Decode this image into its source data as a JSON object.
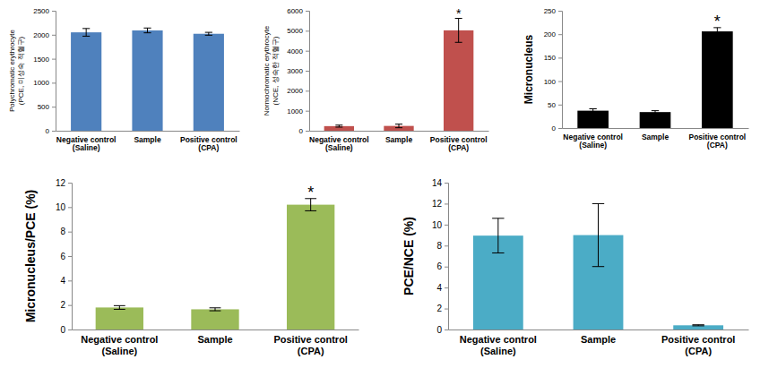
{
  "chart_data": [
    {
      "type": "bar",
      "ylabel": "Polychromatic erythrocyte\n(PCE, 미성숙 적혈구)",
      "categories": [
        "Negative control\n(Saline)",
        "Sample",
        "Positive control\n(CPA)"
      ],
      "values": [
        2050,
        2090,
        2020
      ],
      "errors": [
        80,
        50,
        30
      ],
      "significance": [
        null,
        null,
        null
      ],
      "color": "#4f81bd",
      "ylim": [
        0,
        2500
      ],
      "yticks": [
        0,
        500,
        1000,
        1500,
        2000,
        2500
      ]
    },
    {
      "type": "bar",
      "ylabel": "Normochromatic erythrocyte\n(NCE, 성숙한 적혈구)",
      "categories": [
        "Negative control\n(Saline)",
        "Sample",
        "Positive control\n(CPA)"
      ],
      "values": [
        230,
        240,
        5020
      ],
      "errors": [
        50,
        90,
        600
      ],
      "significance": [
        null,
        null,
        "*"
      ],
      "color": "#c0504d",
      "ylim": [
        0,
        6000
      ],
      "yticks": [
        0,
        1000,
        2000,
        3000,
        4000,
        5000,
        6000
      ]
    },
    {
      "type": "bar",
      "ylabel": "Micronucleus",
      "categories": [
        "Negative control\n(Saline)",
        "Sample",
        "Positive control\n(CPA)"
      ],
      "values": [
        37,
        34,
        206
      ],
      "errors": [
        4,
        3,
        8
      ],
      "significance": [
        null,
        null,
        "*"
      ],
      "color": "#000000",
      "ylim": [
        0,
        250
      ],
      "yticks": [
        0,
        50,
        100,
        150,
        200,
        250
      ]
    },
    {
      "type": "bar",
      "ylabel": "Micronucleus/PCE (%)",
      "categories": [
        "Negative control\n(Saline)",
        "Sample",
        "Positive control\n(CPA)"
      ],
      "values": [
        1.8,
        1.65,
        10.2
      ],
      "errors": [
        0.15,
        0.12,
        0.5
      ],
      "significance": [
        null,
        null,
        "*"
      ],
      "color": "#9bbb59",
      "ylim": [
        0,
        12
      ],
      "yticks": [
        0,
        2,
        4,
        6,
        8,
        10,
        12
      ]
    },
    {
      "type": "bar",
      "ylabel": "PCE/NCE (%)",
      "categories": [
        "Negative control\n(Saline)",
        "Sample",
        "Positive control\n(CPA)"
      ],
      "values": [
        8.95,
        9.0,
        0.4
      ],
      "errors": [
        1.65,
        3.0,
        0.05
      ],
      "significance": [
        null,
        null,
        null
      ],
      "color": "#4bacc6",
      "ylim": [
        0,
        14
      ],
      "yticks": [
        0,
        2,
        4,
        6,
        8,
        10,
        12,
        14
      ]
    }
  ]
}
